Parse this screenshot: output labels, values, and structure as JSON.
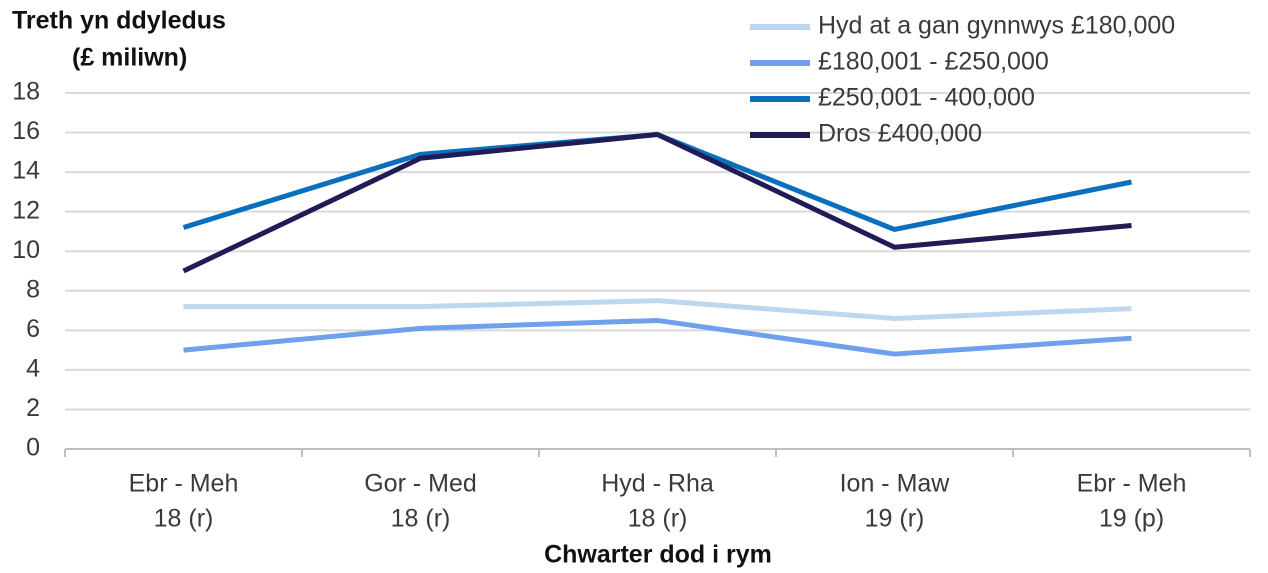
{
  "chart_data": {
    "type": "line",
    "y_label": [
      "Treth yn ddyledus",
      "(£ miliwn)"
    ],
    "x_label": "Chwarter dod i rym",
    "categories": [
      [
        "Ebr - Meh",
        "18 (r)"
      ],
      [
        "Gor - Med",
        "18 (r)"
      ],
      [
        "Hyd - Rha",
        "18 (r)"
      ],
      [
        "Ion - Maw",
        "19 (r)"
      ],
      [
        "Ebr - Meh",
        "19 (p)"
      ]
    ],
    "series": [
      {
        "name": "Hyd at a gan gynnwys £180,000",
        "color": "#bdd7ee",
        "values": [
          7.2,
          7.2,
          7.5,
          6.6,
          7.1
        ]
      },
      {
        "name": "£180,001 - £250,000",
        "color": "#6fa0ec",
        "values": [
          5.0,
          6.1,
          6.5,
          4.8,
          5.6
        ]
      },
      {
        "name": "£250,001 - 400,000",
        "color": "#0a6fbd",
        "values": [
          11.2,
          14.9,
          15.9,
          11.1,
          13.5
        ]
      },
      {
        "name": "Dros £400,000",
        "color": "#201c55",
        "values": [
          9.0,
          14.7,
          15.9,
          10.2,
          11.3
        ]
      }
    ],
    "ylim": [
      0,
      18
    ],
    "yticks": [
      0,
      2,
      4,
      6,
      8,
      10,
      12,
      14,
      16,
      18
    ],
    "grid": true,
    "legend": "top-right"
  }
}
